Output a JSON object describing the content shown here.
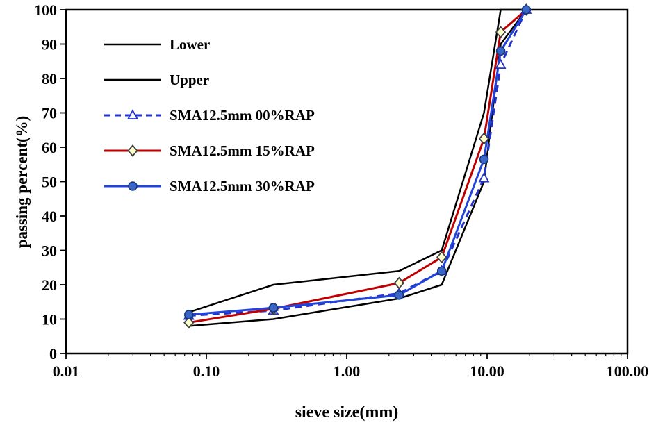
{
  "chart_data": {
    "type": "line",
    "xlabel": "sieve size(mm)",
    "ylabel": "passing percent(%)",
    "x_scale": "log",
    "xlim": [
      0.01,
      100
    ],
    "ylim": [
      0,
      100
    ],
    "x_tick_values": [
      0.01,
      0.1,
      1,
      10,
      100
    ],
    "x_tick_labels": [
      "0.01",
      "0.10",
      "1.00",
      "10.00",
      "100.00"
    ],
    "y_tick_values": [
      0,
      10,
      20,
      30,
      40,
      50,
      60,
      70,
      80,
      90,
      100
    ],
    "grid": false,
    "legend_position": "top-left-inside",
    "sieve_sizes_mm": [
      0.075,
      0.3,
      2.36,
      4.75,
      9.5,
      12.5,
      19
    ],
    "series": [
      {
        "name": "Lower",
        "color": "#000000",
        "line_style": "solid",
        "line_width": 2.5,
        "marker": "none",
        "values": [
          8,
          10,
          16,
          20,
          50,
          90,
          100
        ]
      },
      {
        "name": "Upper",
        "color": "#000000",
        "line_style": "solid",
        "line_width": 2.5,
        "marker": "none",
        "values": [
          12,
          20,
          24,
          30,
          70,
          100,
          100
        ]
      },
      {
        "name": "SMA12.5mm 00%RAP",
        "color": "#2233cc",
        "line_style": "dashed",
        "line_width": 3,
        "marker": "triangle-open",
        "marker_fill": "#ffffff",
        "marker_stroke": "#2233cc",
        "values": [
          11,
          12.5,
          17.5,
          24,
          51,
          84,
          100
        ]
      },
      {
        "name": "SMA12.5mm 15%RAP",
        "color": "#c00000",
        "line_style": "solid",
        "line_width": 3,
        "marker": "diamond-open",
        "marker_fill": "#ffffcc",
        "marker_stroke": "#404040",
        "values": [
          9,
          13,
          20.5,
          28,
          62.5,
          93.5,
          100
        ]
      },
      {
        "name": "SMA12.5mm 30%RAP",
        "color": "#2244dd",
        "line_style": "solid",
        "line_width": 3,
        "marker": "circle-filled",
        "marker_fill": "#3a66c8",
        "marker_stroke": "#15357a",
        "values": [
          11.3,
          13.3,
          17,
          24,
          56.5,
          88,
          100
        ]
      }
    ]
  }
}
